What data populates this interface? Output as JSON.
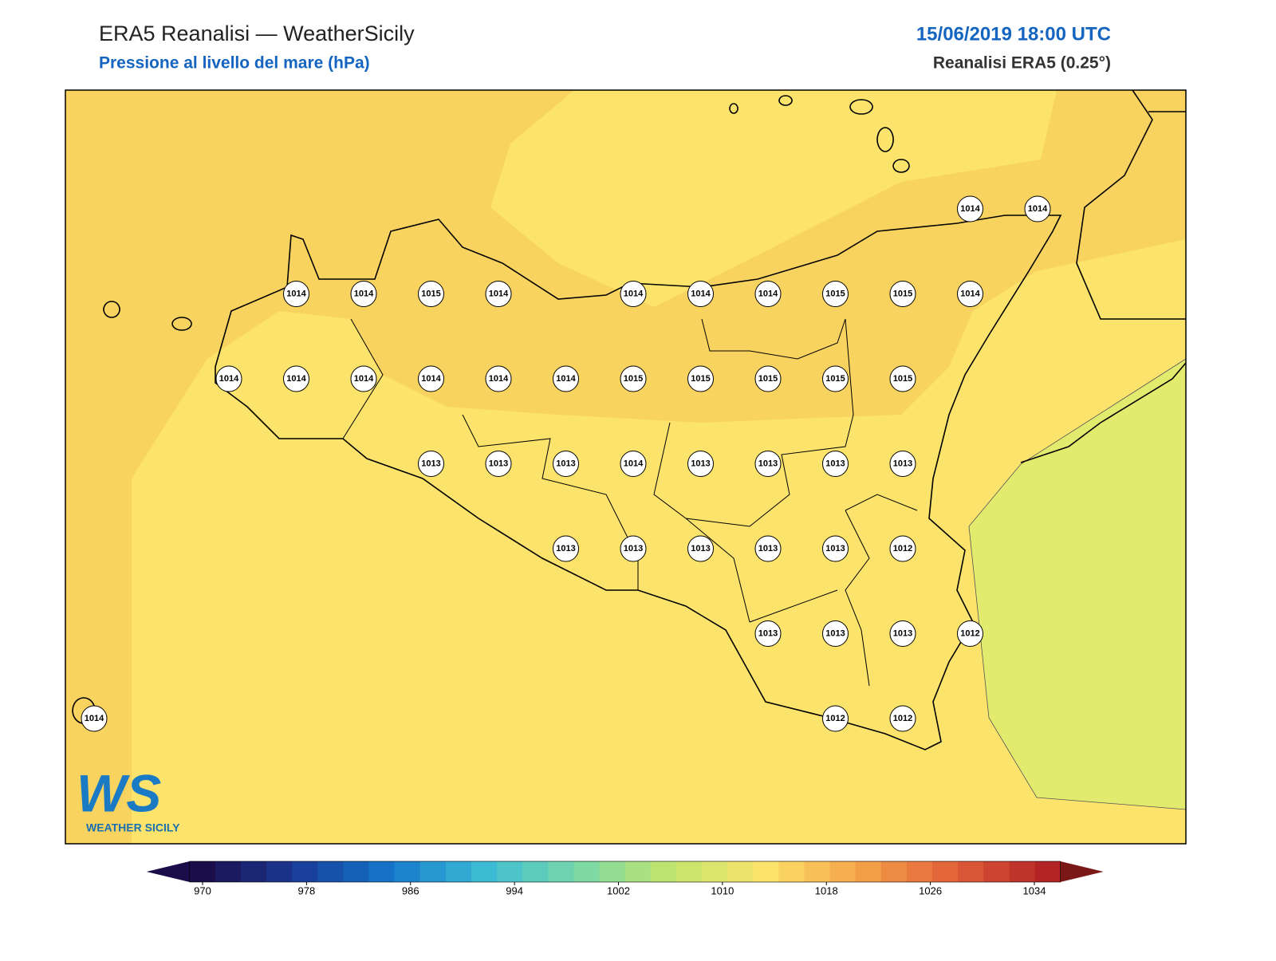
{
  "header": {
    "title": "ERA5 Reanalisi — WeatherSicily",
    "subtitle": "Pressione al livello del mare (hPa)",
    "datetime": "15/06/2019 18:00 UTC",
    "source": "Reanalisi ERA5 (0.25°)"
  },
  "stations": {
    "rows": [
      [
        null,
        null,
        null,
        null,
        null,
        null,
        null,
        null,
        null,
        null,
        null,
        null,
        null,
        "1014",
        "1014"
      ],
      [
        null,
        null,
        null,
        "1014",
        "1014",
        "1015",
        "1014",
        null,
        "1014",
        "1014",
        "1014",
        "1015",
        "1015",
        "1014",
        null
      ],
      [
        null,
        null,
        "1014",
        "1014",
        "1014",
        "1014",
        "1014",
        "1014",
        "1015",
        "1015",
        "1015",
        "1015",
        "1015",
        null,
        null
      ],
      [
        null,
        null,
        null,
        null,
        null,
        "1013",
        "1013",
        "1013",
        "1014",
        "1013",
        "1013",
        "1013",
        "1013",
        null,
        null
      ],
      [
        null,
        null,
        null,
        null,
        null,
        null,
        null,
        "1013",
        "1013",
        "1013",
        "1013",
        "1013",
        "1012",
        null,
        null
      ],
      [
        null,
        null,
        null,
        null,
        null,
        null,
        null,
        null,
        null,
        null,
        "1013",
        "1013",
        "1013",
        "1012",
        null
      ],
      [
        "1014",
        null,
        null,
        null,
        null,
        null,
        null,
        null,
        null,
        null,
        null,
        "1012",
        "1012",
        null,
        null
      ]
    ]
  },
  "colorbar": {
    "ticks": [
      970,
      978,
      986,
      994,
      1002,
      1010,
      1018,
      1026,
      1034
    ],
    "colors": [
      "#1b0c4a",
      "#1a3a96",
      "#1478cc",
      "#3cbcd4",
      "#78d8a8",
      "#c4e46c",
      "#fbe36c",
      "#f4a447",
      "#e2603a",
      "#b32525"
    ],
    "under": "#1b0c4a",
    "over": "#7a1818"
  },
  "logo": {
    "initials": "WS",
    "name": "WEATHER SICILY"
  }
}
